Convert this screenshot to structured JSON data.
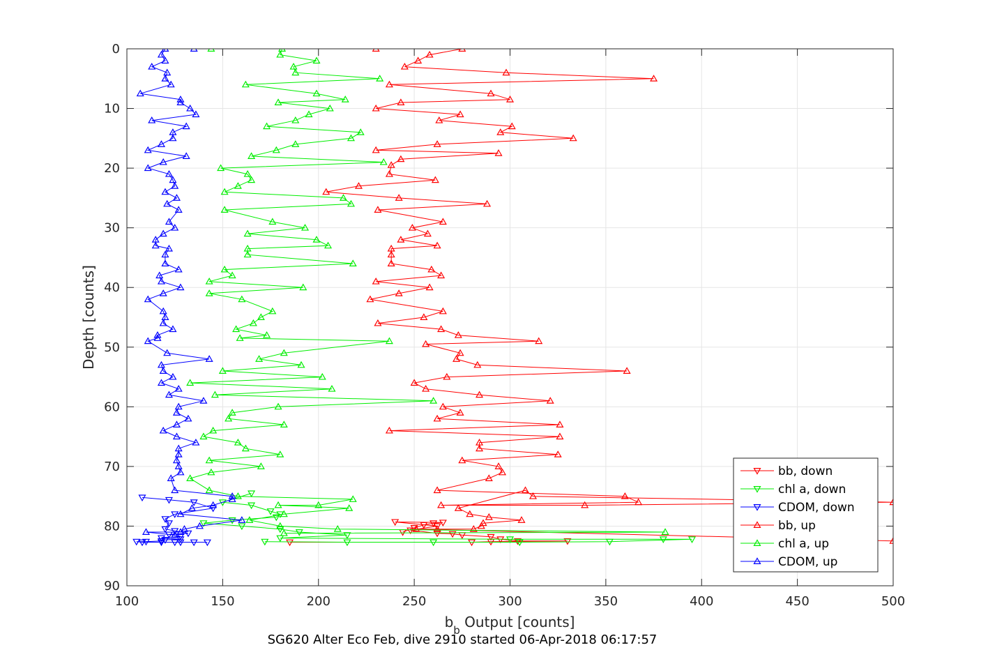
{
  "chart_data": {
    "type": "line",
    "xlabel_main": "b",
    "xlabel_sub": "b",
    "xlabel_rest": " Output [counts]",
    "ylabel": "Depth [counts]",
    "footer": "SG620 Alter Eco Feb, dive 2910 started 06-Apr-2018 06:17:57",
    "xlim": [
      100,
      500
    ],
    "ylim": [
      0,
      90
    ],
    "y_reversed": true,
    "grid": true,
    "legend_placement": "bottom-right",
    "x_ticks": [
      "100",
      "150",
      "200",
      "250",
      "300",
      "350",
      "400",
      "450",
      "500"
    ],
    "y_ticks": [
      "0",
      "10",
      "20",
      "30",
      "40",
      "50",
      "60",
      "70",
      "80",
      "90"
    ],
    "series": [
      {
        "name": "bb, down",
        "color": "#ff0000",
        "marker": "triangle-down",
        "points": [
          [
            244,
            81
          ],
          [
            250,
            80.3
          ],
          [
            255,
            79.8
          ],
          [
            260,
            79.5
          ],
          [
            265,
            79.4
          ],
          [
            240,
            79.3
          ],
          [
            262,
            80.0
          ],
          [
            248,
            80.7
          ],
          [
            262,
            81.2
          ],
          [
            270,
            81.3
          ],
          [
            275,
            81.5
          ],
          [
            290,
            81.8
          ],
          [
            295,
            82.2
          ],
          [
            304,
            82.5
          ],
          [
            330,
            82.5
          ],
          [
            290,
            82.6
          ],
          [
            280,
            82.7
          ],
          [
            185,
            82.7
          ]
        ]
      },
      {
        "name": "chl a, down",
        "color": "#00ee00",
        "marker": "triangle-down",
        "points": [
          [
            165,
            74.5
          ],
          [
            150,
            76
          ],
          [
            165,
            76.5
          ],
          [
            175,
            77.5
          ],
          [
            180,
            78
          ],
          [
            178,
            78.5
          ],
          [
            155,
            79
          ],
          [
            140,
            79.5
          ],
          [
            160,
            80
          ],
          [
            180,
            80.5
          ],
          [
            190,
            81
          ],
          [
            215,
            81.5
          ],
          [
            180,
            82
          ],
          [
            300,
            82.2
          ],
          [
            380,
            82.2
          ],
          [
            395,
            82.2
          ],
          [
            352,
            82.6
          ],
          [
            305,
            82.7
          ],
          [
            260,
            82.7
          ],
          [
            215,
            82.7
          ],
          [
            172,
            82.6
          ]
        ]
      },
      {
        "name": "CDOM, down",
        "color": "#0000ff",
        "marker": "triangle-down",
        "points": [
          [
            108,
            75.2
          ],
          [
            122,
            75.6
          ],
          [
            135,
            76
          ],
          [
            145,
            77
          ],
          [
            125,
            78
          ],
          [
            120,
            78.8
          ],
          [
            122,
            79.5
          ],
          [
            120,
            80.5
          ],
          [
            125,
            80.8
          ],
          [
            132,
            81.2
          ],
          [
            122,
            81.4
          ],
          [
            128,
            81.7
          ],
          [
            118,
            82
          ],
          [
            128,
            82.2
          ],
          [
            120,
            82.3
          ],
          [
            118,
            82.5
          ],
          [
            110,
            82.6
          ],
          [
            105,
            82.6
          ],
          [
            108,
            82.7
          ],
          [
            118,
            82.7
          ],
          [
            125,
            82.7
          ],
          [
            128,
            82.7
          ],
          [
            135,
            82.7
          ],
          [
            142,
            82.7
          ]
        ]
      },
      {
        "name": "bb, up",
        "color": "#ff0000",
        "marker": "triangle-up",
        "points": [
          [
            230,
            0
          ],
          [
            275,
            0
          ],
          [
            258,
            1
          ],
          [
            252,
            2
          ],
          [
            245,
            3
          ],
          [
            298,
            4
          ],
          [
            375,
            5
          ],
          [
            237,
            6
          ],
          [
            290,
            7.5
          ],
          [
            300,
            8.5
          ],
          [
            243,
            9
          ],
          [
            230,
            10
          ],
          [
            274,
            11
          ],
          [
            263,
            12
          ],
          [
            301,
            13
          ],
          [
            295,
            14
          ],
          [
            333,
            15
          ],
          [
            262,
            16
          ],
          [
            230,
            17
          ],
          [
            294,
            17.5
          ],
          [
            243,
            18.5
          ],
          [
            238,
            19.5
          ],
          [
            237,
            21
          ],
          [
            261,
            22
          ],
          [
            221,
            23
          ],
          [
            204,
            24
          ],
          [
            242,
            25
          ],
          [
            288,
            26
          ],
          [
            231,
            27
          ],
          [
            265,
            29
          ],
          [
            249,
            30
          ],
          [
            257,
            31
          ],
          [
            243,
            32
          ],
          [
            262,
            33
          ],
          [
            238,
            33.5
          ],
          [
            238,
            34.5
          ],
          [
            238,
            36
          ],
          [
            259,
            37
          ],
          [
            264,
            38
          ],
          [
            230,
            39
          ],
          [
            258,
            40
          ],
          [
            242,
            41
          ],
          [
            227,
            42
          ],
          [
            265,
            44
          ],
          [
            255,
            45
          ],
          [
            231,
            46
          ],
          [
            264,
            47
          ],
          [
            273,
            48
          ],
          [
            315,
            49
          ],
          [
            256,
            49.5
          ],
          [
            274,
            51
          ],
          [
            272,
            52
          ],
          [
            283,
            53
          ],
          [
            361,
            54
          ],
          [
            267,
            55
          ],
          [
            250,
            56
          ],
          [
            256,
            57
          ],
          [
            284,
            58
          ],
          [
            321,
            59
          ],
          [
            265,
            60
          ],
          [
            274,
            61
          ],
          [
            262,
            62
          ],
          [
            326,
            63
          ],
          [
            237,
            64
          ],
          [
            326,
            65
          ],
          [
            284,
            66
          ],
          [
            284,
            67
          ],
          [
            325,
            68
          ],
          [
            275,
            69
          ],
          [
            294,
            70
          ],
          [
            296,
            71
          ],
          [
            289,
            72
          ],
          [
            262,
            74
          ],
          [
            360,
            75
          ],
          [
            367,
            76
          ],
          [
            264,
            76.5
          ],
          [
            339,
            76.5
          ],
          [
            500,
            76
          ],
          [
            312,
            75
          ],
          [
            308,
            74
          ],
          [
            273,
            77
          ],
          [
            279,
            78
          ],
          [
            289,
            78.5
          ],
          [
            306,
            79
          ],
          [
            286,
            79.5
          ],
          [
            285,
            80
          ],
          [
            281,
            80.5
          ],
          [
            262,
            80.5
          ],
          [
            251,
            80.5
          ],
          [
            500,
            82.5
          ]
        ]
      },
      {
        "name": "chl a, up",
        "color": "#00ee00",
        "marker": "triangle-up",
        "points": [
          [
            144,
            0
          ],
          [
            181,
            0
          ],
          [
            180,
            1
          ],
          [
            199,
            2
          ],
          [
            187,
            3
          ],
          [
            188,
            4
          ],
          [
            232,
            5
          ],
          [
            162,
            6
          ],
          [
            199,
            7.5
          ],
          [
            214,
            8.5
          ],
          [
            179,
            9
          ],
          [
            206,
            10
          ],
          [
            195,
            11
          ],
          [
            188,
            12
          ],
          [
            173,
            13
          ],
          [
            222,
            14
          ],
          [
            217,
            15
          ],
          [
            188,
            16
          ],
          [
            178,
            17
          ],
          [
            165,
            18
          ],
          [
            234,
            19
          ],
          [
            149,
            20
          ],
          [
            163,
            21
          ],
          [
            165,
            22
          ],
          [
            158,
            23
          ],
          [
            151,
            24
          ],
          [
            213,
            25
          ],
          [
            217,
            26
          ],
          [
            151,
            27
          ],
          [
            176,
            29
          ],
          [
            193,
            30
          ],
          [
            163,
            31
          ],
          [
            199,
            32
          ],
          [
            205,
            33
          ],
          [
            163,
            33.5
          ],
          [
            163,
            34.5
          ],
          [
            218,
            36
          ],
          [
            151,
            37
          ],
          [
            155,
            38
          ],
          [
            143,
            39
          ],
          [
            192,
            40
          ],
          [
            143,
            41
          ],
          [
            160,
            42
          ],
          [
            176,
            44
          ],
          [
            170,
            45
          ],
          [
            166,
            46
          ],
          [
            157,
            47
          ],
          [
            173,
            48
          ],
          [
            159,
            48.5
          ],
          [
            237,
            49
          ],
          [
            182,
            51
          ],
          [
            169,
            52
          ],
          [
            191,
            53
          ],
          [
            150,
            54
          ],
          [
            202,
            55
          ],
          [
            133,
            56
          ],
          [
            207,
            57
          ],
          [
            146,
            58
          ],
          [
            260,
            59
          ],
          [
            179,
            60
          ],
          [
            155,
            61
          ],
          [
            153,
            62
          ],
          [
            182,
            63
          ],
          [
            145,
            64
          ],
          [
            140,
            65
          ],
          [
            158,
            66
          ],
          [
            162,
            67
          ],
          [
            180,
            68
          ],
          [
            143,
            69
          ],
          [
            170,
            70
          ],
          [
            144,
            71
          ],
          [
            133,
            72
          ],
          [
            143,
            74
          ],
          [
            158,
            75
          ],
          [
            218,
            75.5
          ],
          [
            200,
            76.5
          ],
          [
            179,
            76.5
          ],
          [
            216,
            77
          ],
          [
            182,
            78
          ],
          [
            164,
            79
          ],
          [
            180,
            80
          ],
          [
            210,
            80.5
          ],
          [
            381,
            81
          ],
          [
            182,
            81.2
          ]
        ]
      },
      {
        "name": "CDOM, up",
        "color": "#0000ff",
        "marker": "triangle-up",
        "points": [
          [
            135,
            0
          ],
          [
            120,
            0
          ],
          [
            118,
            1
          ],
          [
            120,
            2
          ],
          [
            113,
            3
          ],
          [
            121,
            4
          ],
          [
            120,
            5
          ],
          [
            123,
            6
          ],
          [
            107,
            7.5
          ],
          [
            128,
            8.5
          ],
          [
            128,
            9
          ],
          [
            133,
            10
          ],
          [
            136,
            11
          ],
          [
            113,
            12
          ],
          [
            131,
            13
          ],
          [
            124,
            14
          ],
          [
            124,
            15
          ],
          [
            118,
            16
          ],
          [
            111,
            17
          ],
          [
            131,
            18
          ],
          [
            119,
            19
          ],
          [
            111,
            20
          ],
          [
            122,
            21
          ],
          [
            124,
            22
          ],
          [
            125,
            23
          ],
          [
            120,
            24
          ],
          [
            126,
            25
          ],
          [
            121,
            26
          ],
          [
            127,
            27
          ],
          [
            122,
            29
          ],
          [
            125,
            30
          ],
          [
            119,
            31
          ],
          [
            115,
            32
          ],
          [
            115,
            33
          ],
          [
            122,
            33.5
          ],
          [
            120,
            34.5
          ],
          [
            120,
            36
          ],
          [
            127,
            37
          ],
          [
            117,
            38
          ],
          [
            118,
            39
          ],
          [
            128,
            40
          ],
          [
            119,
            41
          ],
          [
            111,
            42
          ],
          [
            119,
            44
          ],
          [
            120,
            45
          ],
          [
            119,
            46
          ],
          [
            124,
            47
          ],
          [
            116,
            48
          ],
          [
            116,
            48.5
          ],
          [
            111,
            49
          ],
          [
            121,
            51
          ],
          [
            143,
            52
          ],
          [
            118,
            53
          ],
          [
            119,
            54
          ],
          [
            124,
            55
          ],
          [
            118,
            56
          ],
          [
            127,
            57
          ],
          [
            122,
            58
          ],
          [
            140,
            59
          ],
          [
            127,
            60
          ],
          [
            126,
            61
          ],
          [
            132,
            62
          ],
          [
            126,
            63
          ],
          [
            119,
            64
          ],
          [
            126,
            65
          ],
          [
            136,
            66
          ],
          [
            127,
            67
          ],
          [
            127,
            68
          ],
          [
            126,
            69
          ],
          [
            127,
            70
          ],
          [
            128,
            71
          ],
          [
            123,
            72
          ],
          [
            125,
            74
          ],
          [
            155,
            75
          ],
          [
            155,
            75.5
          ],
          [
            145,
            76.5
          ],
          [
            134,
            77
          ],
          [
            128,
            78
          ],
          [
            160,
            79
          ],
          [
            138,
            80
          ],
          [
            130,
            80.5
          ],
          [
            128,
            81
          ],
          [
            110,
            81
          ],
          [
            125,
            81.5
          ]
        ]
      }
    ]
  }
}
